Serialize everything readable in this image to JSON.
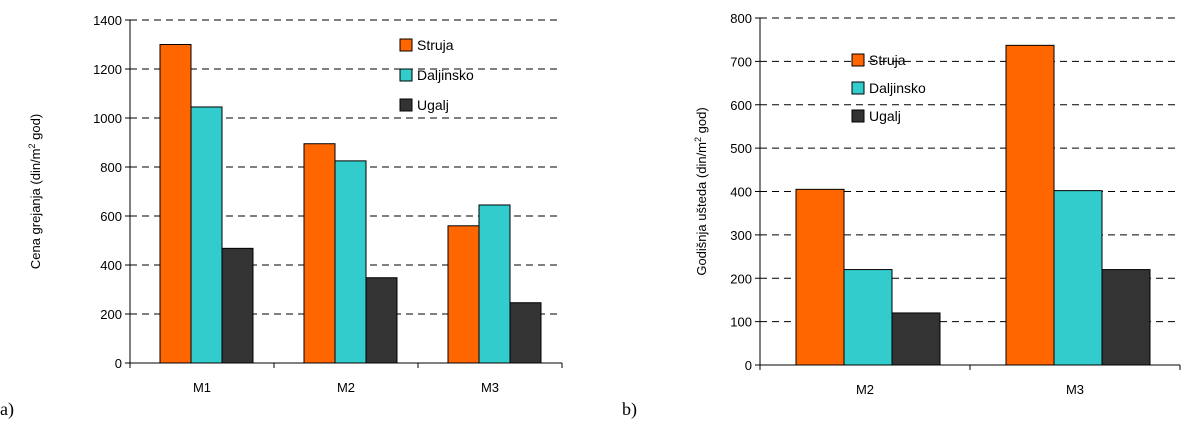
{
  "colors": {
    "Struja": "#ff6600",
    "Daljinsko": "#33cccc",
    "Ugalj": "#333333"
  },
  "chart_data": [
    {
      "type": "bar",
      "panel_label": "a)",
      "ylabel": "Cena grejanja (din/m",
      "ylabel_sup": "2",
      "ylabel_tail": " god)",
      "categories": [
        "M1",
        "M2",
        "M3"
      ],
      "ylim": [
        0,
        1400
      ],
      "yticks": [
        0,
        200,
        400,
        600,
        800,
        1000,
        1200,
        1400
      ],
      "grid": "dashed horizontal",
      "legend_position": "top-right",
      "series": [
        {
          "name": "Struja",
          "values": [
            1300,
            895,
            560
          ]
        },
        {
          "name": "Daljinsko",
          "values": [
            1045,
            825,
            645
          ]
        },
        {
          "name": "Ugalj",
          "values": [
            468,
            348,
            246
          ]
        }
      ]
    },
    {
      "type": "bar",
      "panel_label": "b)",
      "ylabel": "Godišnja ušteda (din/m",
      "ylabel_sup": "2",
      "ylabel_tail": " god)",
      "categories": [
        "M2",
        "M3"
      ],
      "ylim": [
        0,
        800
      ],
      "yticks": [
        0,
        100,
        200,
        300,
        400,
        500,
        600,
        700,
        800
      ],
      "grid": "dashed horizontal",
      "legend_position": "top-center",
      "series": [
        {
          "name": "Struja",
          "values": [
            405,
            737
          ]
        },
        {
          "name": "Daljinsko",
          "values": [
            220,
            402
          ]
        },
        {
          "name": "Ugalj",
          "values": [
            120,
            220
          ]
        }
      ]
    }
  ]
}
